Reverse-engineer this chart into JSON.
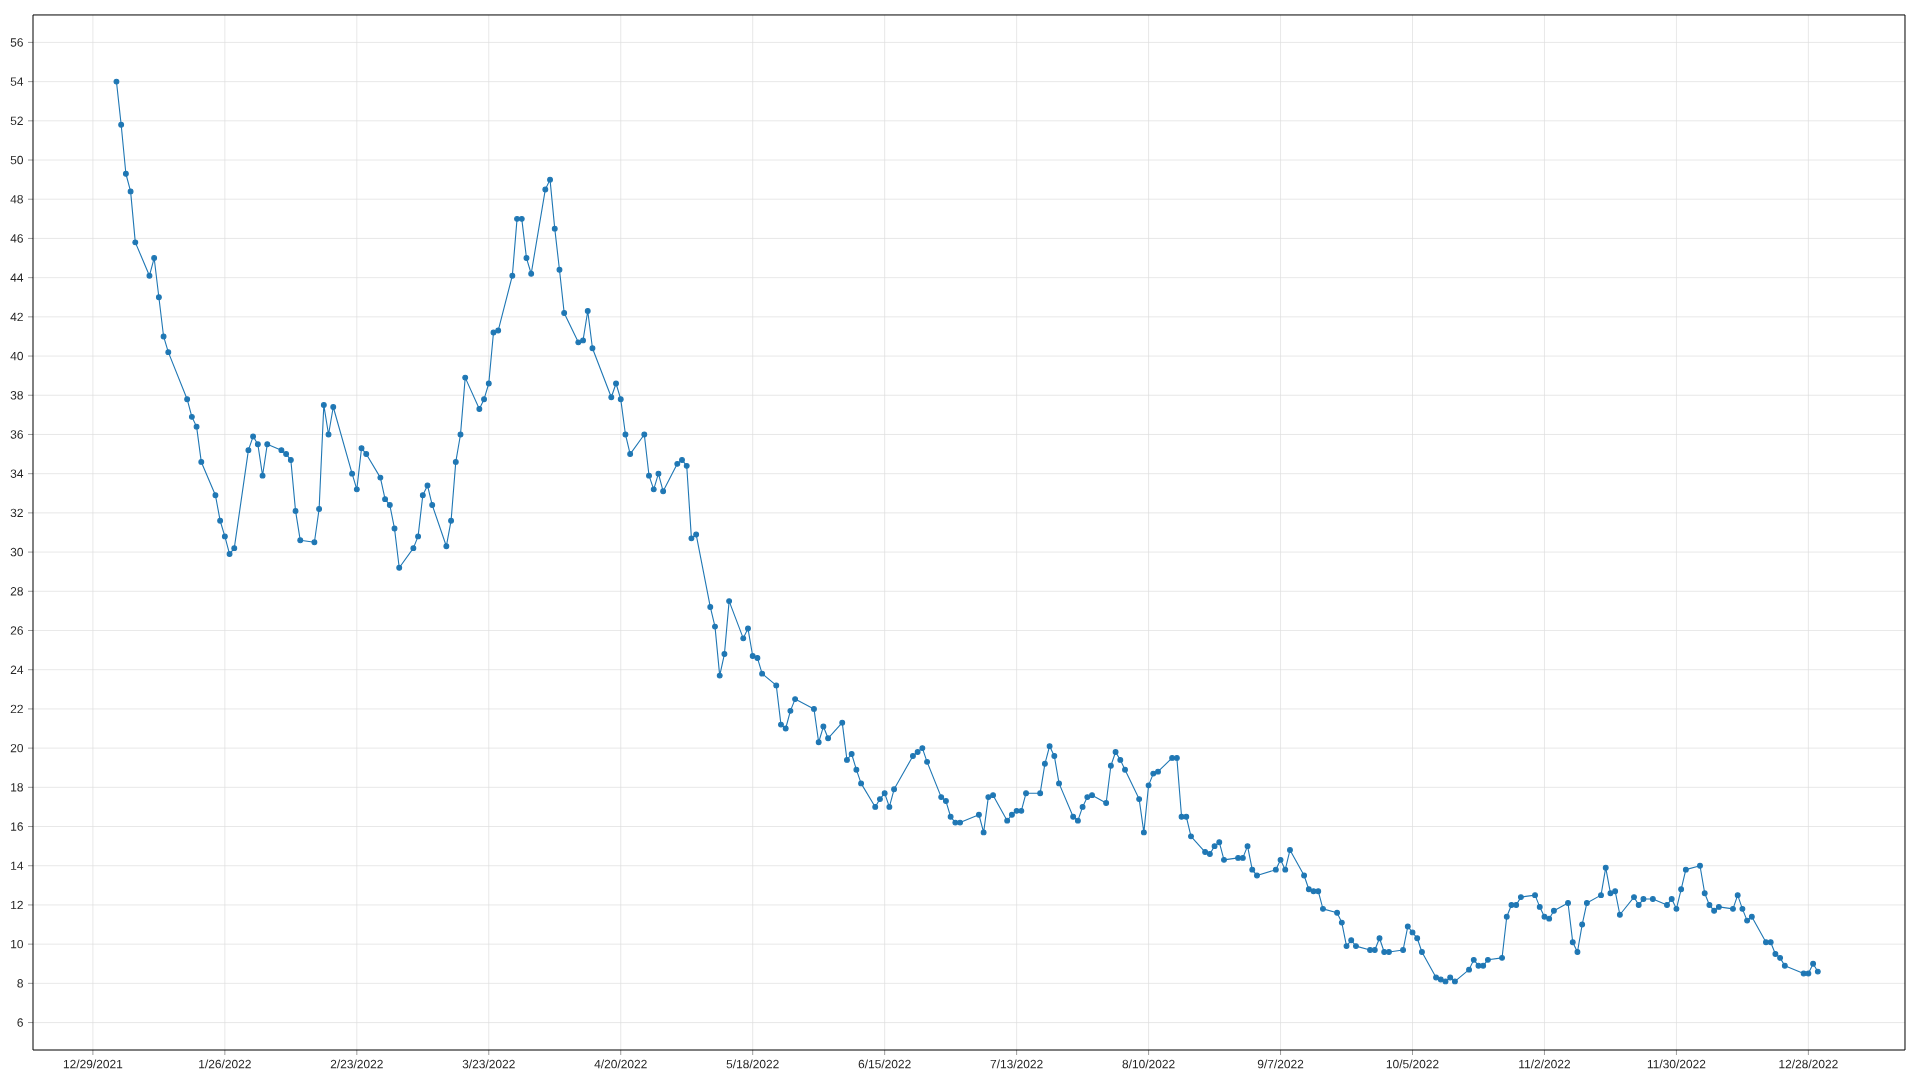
{
  "chart_data": {
    "type": "line",
    "color": "#1f77b4",
    "marker": "circle",
    "grid": true,
    "xlim": [
      "2021-12-16T07:00",
      "2023-01-17T12:00"
    ],
    "ylim": [
      4.6,
      57.4
    ],
    "xticks": [
      {
        "value": "2021-12-29",
        "label": "12/29/2021"
      },
      {
        "value": "2022-01-26",
        "label": "1/26/2022"
      },
      {
        "value": "2022-02-23",
        "label": "2/23/2022"
      },
      {
        "value": "2022-03-23",
        "label": "3/23/2022"
      },
      {
        "value": "2022-04-20",
        "label": "4/20/2022"
      },
      {
        "value": "2022-05-18",
        "label": "5/18/2022"
      },
      {
        "value": "2022-06-15",
        "label": "6/15/2022"
      },
      {
        "value": "2022-07-13",
        "label": "7/13/2022"
      },
      {
        "value": "2022-08-10",
        "label": "8/10/2022"
      },
      {
        "value": "2022-09-07",
        "label": "9/7/2022"
      },
      {
        "value": "2022-10-05",
        "label": "10/5/2022"
      },
      {
        "value": "2022-11-02",
        "label": "11/2/2022"
      },
      {
        "value": "2022-11-30",
        "label": "11/30/2022"
      },
      {
        "value": "2022-12-28",
        "label": "12/28/2022"
      }
    ],
    "yticks": [
      6,
      8,
      10,
      12,
      14,
      16,
      18,
      20,
      22,
      24,
      26,
      28,
      30,
      32,
      34,
      36,
      38,
      40,
      42,
      44,
      46,
      48,
      50,
      52,
      54,
      56
    ],
    "x": [
      "2022-01-03",
      "2022-01-04",
      "2022-01-05",
      "2022-01-06",
      "2022-01-07",
      "2022-01-10",
      "2022-01-11",
      "2022-01-12",
      "2022-01-13",
      "2022-01-14",
      "2022-01-18",
      "2022-01-19",
      "2022-01-20",
      "2022-01-21",
      "2022-01-24",
      "2022-01-25",
      "2022-01-26",
      "2022-01-27",
      "2022-01-28",
      "2022-01-31",
      "2022-02-01",
      "2022-02-02",
      "2022-02-03",
      "2022-02-04",
      "2022-02-07",
      "2022-02-08",
      "2022-02-09",
      "2022-02-10",
      "2022-02-11",
      "2022-02-14",
      "2022-02-15",
      "2022-02-16",
      "2022-02-17",
      "2022-02-18",
      "2022-02-22",
      "2022-02-23",
      "2022-02-24",
      "2022-02-25",
      "2022-02-28",
      "2022-03-01",
      "2022-03-02",
      "2022-03-03",
      "2022-03-04",
      "2022-03-07",
      "2022-03-08",
      "2022-03-09",
      "2022-03-10",
      "2022-03-11",
      "2022-03-14",
      "2022-03-15",
      "2022-03-16",
      "2022-03-17",
      "2022-03-18",
      "2022-03-21",
      "2022-03-22",
      "2022-03-23",
      "2022-03-24",
      "2022-03-25",
      "2022-03-28",
      "2022-03-29",
      "2022-03-30",
      "2022-03-31",
      "2022-04-01",
      "2022-04-04",
      "2022-04-05",
      "2022-04-06",
      "2022-04-07",
      "2022-04-08",
      "2022-04-11",
      "2022-04-12",
      "2022-04-13",
      "2022-04-14",
      "2022-04-18",
      "2022-04-19",
      "2022-04-20",
      "2022-04-21",
      "2022-04-22",
      "2022-04-25",
      "2022-04-26",
      "2022-04-27",
      "2022-04-28",
      "2022-04-29",
      "2022-05-02",
      "2022-05-03",
      "2022-05-04",
      "2022-05-05",
      "2022-05-06",
      "2022-05-09",
      "2022-05-10",
      "2022-05-11",
      "2022-05-12",
      "2022-05-13",
      "2022-05-16",
      "2022-05-17",
      "2022-05-18",
      "2022-05-19",
      "2022-05-20",
      "2022-05-23",
      "2022-05-24",
      "2022-05-25",
      "2022-05-26",
      "2022-05-27",
      "2022-05-31",
      "2022-06-01",
      "2022-06-02",
      "2022-06-03",
      "2022-06-06",
      "2022-06-07",
      "2022-06-08",
      "2022-06-09",
      "2022-06-10",
      "2022-06-13",
      "2022-06-14",
      "2022-06-15",
      "2022-06-16",
      "2022-06-17",
      "2022-06-21",
      "2022-06-22",
      "2022-06-23",
      "2022-06-24",
      "2022-06-27",
      "2022-06-28",
      "2022-06-29",
      "2022-06-30",
      "2022-07-01",
      "2022-07-05",
      "2022-07-06",
      "2022-07-07",
      "2022-07-08",
      "2022-07-11",
      "2022-07-12",
      "2022-07-13",
      "2022-07-14",
      "2022-07-15",
      "2022-07-18",
      "2022-07-19",
      "2022-07-20",
      "2022-07-21",
      "2022-07-22",
      "2022-07-25",
      "2022-07-26",
      "2022-07-27",
      "2022-07-28",
      "2022-07-29",
      "2022-08-01",
      "2022-08-02",
      "2022-08-03",
      "2022-08-04",
      "2022-08-05",
      "2022-08-08",
      "2022-08-09",
      "2022-08-10",
      "2022-08-11",
      "2022-08-12",
      "2022-08-15",
      "2022-08-16",
      "2022-08-17",
      "2022-08-18",
      "2022-08-19",
      "2022-08-22",
      "2022-08-23",
      "2022-08-24",
      "2022-08-25",
      "2022-08-26",
      "2022-08-29",
      "2022-08-30",
      "2022-08-31",
      "2022-09-01",
      "2022-09-02",
      "2022-09-06",
      "2022-09-07",
      "2022-09-08",
      "2022-09-09",
      "2022-09-12",
      "2022-09-13",
      "2022-09-14",
      "2022-09-15",
      "2022-09-16",
      "2022-09-19",
      "2022-09-20",
      "2022-09-21",
      "2022-09-22",
      "2022-09-23",
      "2022-09-26",
      "2022-09-27",
      "2022-09-28",
      "2022-09-29",
      "2022-09-30",
      "2022-10-03",
      "2022-10-04",
      "2022-10-05",
      "2022-10-06",
      "2022-10-07",
      "2022-10-10",
      "2022-10-11",
      "2022-10-12",
      "2022-10-13",
      "2022-10-14",
      "2022-10-17",
      "2022-10-18",
      "2022-10-19",
      "2022-10-20",
      "2022-10-21",
      "2022-10-24",
      "2022-10-25",
      "2022-10-26",
      "2022-10-27",
      "2022-10-28",
      "2022-10-31",
      "2022-11-01",
      "2022-11-02",
      "2022-11-03",
      "2022-11-04",
      "2022-11-07",
      "2022-11-08",
      "2022-11-09",
      "2022-11-10",
      "2022-11-11",
      "2022-11-14",
      "2022-11-15",
      "2022-11-16",
      "2022-11-17",
      "2022-11-18",
      "2022-11-21",
      "2022-11-22",
      "2022-11-23",
      "2022-11-25",
      "2022-11-28",
      "2022-11-29",
      "2022-11-30",
      "2022-12-01",
      "2022-12-02",
      "2022-12-05",
      "2022-12-06",
      "2022-12-07",
      "2022-12-08",
      "2022-12-09",
      "2022-12-12",
      "2022-12-13",
      "2022-12-14",
      "2022-12-15",
      "2022-12-16",
      "2022-12-19",
      "2022-12-20",
      "2022-12-21",
      "2022-12-22",
      "2022-12-23",
      "2022-12-27",
      "2022-12-28",
      "2022-12-29",
      "2022-12-30"
    ],
    "values": [
      54.0,
      51.8,
      49.3,
      48.4,
      45.8,
      44.1,
      45.0,
      43.0,
      41.0,
      40.2,
      37.8,
      36.9,
      36.4,
      34.6,
      32.9,
      31.6,
      30.8,
      29.9,
      30.2,
      35.2,
      35.9,
      35.5,
      33.9,
      35.5,
      35.2,
      35.0,
      34.7,
      32.1,
      30.6,
      30.5,
      32.2,
      37.5,
      36.0,
      37.4,
      34.0,
      33.2,
      35.3,
      35.0,
      33.8,
      32.7,
      32.4,
      31.2,
      29.2,
      30.2,
      30.8,
      32.9,
      33.4,
      32.4,
      30.3,
      31.6,
      34.6,
      36.0,
      38.9,
      37.3,
      37.8,
      38.6,
      41.2,
      41.3,
      44.1,
      47.0,
      47.0,
      45.0,
      44.2,
      48.5,
      49.0,
      46.5,
      44.4,
      42.2,
      40.7,
      40.8,
      42.3,
      40.4,
      37.9,
      38.6,
      37.8,
      36.0,
      35.0,
      36.0,
      33.9,
      33.2,
      34.0,
      33.1,
      34.5,
      34.7,
      34.4,
      30.7,
      30.9,
      27.2,
      26.2,
      23.7,
      24.8,
      27.5,
      25.6,
      26.1,
      24.7,
      24.6,
      23.8,
      23.2,
      21.2,
      21.0,
      21.9,
      22.5,
      22.0,
      20.3,
      21.1,
      20.5,
      21.3,
      19.4,
      19.7,
      18.9,
      18.2,
      17.0,
      17.4,
      17.7,
      17.0,
      17.9,
      19.6,
      19.8,
      20.0,
      19.3,
      17.5,
      17.3,
      16.5,
      16.2,
      16.2,
      16.6,
      15.7,
      17.5,
      17.6,
      16.3,
      16.6,
      16.8,
      16.8,
      17.7,
      17.7,
      19.2,
      20.1,
      19.6,
      18.2,
      16.5,
      16.3,
      17.0,
      17.5,
      17.6,
      17.2,
      19.1,
      19.8,
      19.4,
      18.9,
      17.4,
      15.7,
      18.1,
      18.7,
      18.8,
      19.5,
      19.5,
      16.5,
      16.5,
      15.5,
      14.7,
      14.6,
      15.0,
      15.2,
      14.3,
      14.4,
      14.4,
      15.0,
      13.8,
      13.5,
      13.8,
      14.3,
      13.8,
      14.8,
      13.5,
      12.8,
      12.7,
      12.7,
      11.8,
      11.6,
      11.1,
      9.9,
      10.2,
      9.9,
      9.7,
      9.7,
      10.3,
      9.6,
      9.6,
      9.7,
      10.9,
      10.6,
      10.3,
      9.6,
      8.3,
      8.2,
      8.1,
      8.3,
      8.1,
      8.7,
      9.2,
      8.9,
      8.9,
      9.2,
      9.3,
      11.4,
      12.0,
      12.0,
      12.4,
      12.5,
      11.9,
      11.4,
      11.3,
      11.7,
      12.1,
      10.1,
      9.6,
      11.0,
      12.1,
      12.5,
      13.9,
      12.6,
      12.7,
      11.5,
      12.4,
      12.0,
      12.3,
      12.3,
      12.0,
      12.3,
      11.8,
      12.8,
      13.8,
      14.0,
      12.6,
      12.0,
      11.7,
      11.9,
      11.8,
      12.5,
      11.8,
      11.2,
      11.4,
      10.1,
      10.1,
      9.5,
      9.3,
      8.9,
      8.5,
      8.5,
      9.0,
      8.6
    ]
  }
}
